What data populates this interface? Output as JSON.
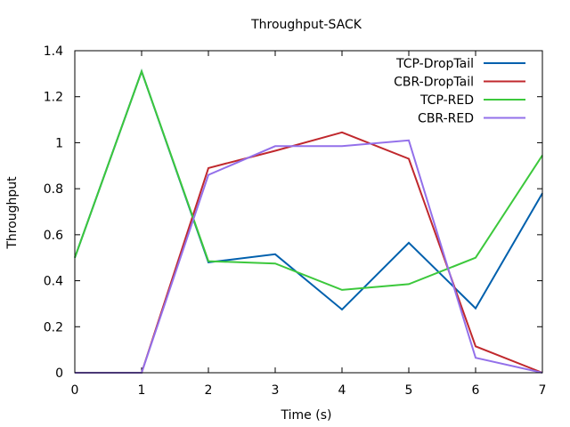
{
  "chart_data": {
    "type": "line",
    "title": "Throughput-SACK",
    "xlabel": "Time (s)",
    "ylabel": "Throughput",
    "xlim": [
      0,
      7
    ],
    "ylim": [
      0,
      1.4
    ],
    "x_ticks": [
      "0",
      "1",
      "2",
      "3",
      "4",
      "5",
      "6",
      "7"
    ],
    "y_ticks": [
      "0",
      "0.2",
      "0.4",
      "0.6",
      "0.8",
      "1",
      "1.2",
      "1.4"
    ],
    "x_tick_values": [
      0,
      1,
      2,
      3,
      4,
      5,
      6,
      7
    ],
    "y_tick_values": [
      0,
      0.2,
      0.4,
      0.6,
      0.8,
      1.0,
      1.2,
      1.4
    ],
    "grid": false,
    "legend_position": "top-right",
    "x": [
      0,
      1,
      2,
      3,
      4,
      5,
      6,
      7
    ],
    "series": [
      {
        "name": "TCP-DropTail",
        "color": "#0060ad",
        "values": [
          0.5,
          1.31,
          0.48,
          0.515,
          0.275,
          0.565,
          0.28,
          0.78
        ]
      },
      {
        "name": "CBR-DropTail",
        "color": "#c0282d",
        "values": [
          0,
          0,
          0.89,
          0.965,
          1.045,
          0.93,
          0.115,
          0
        ]
      },
      {
        "name": "TCP-RED",
        "color": "#3cc83c",
        "values": [
          0.5,
          1.31,
          0.485,
          0.475,
          0.36,
          0.385,
          0.5,
          0.945
        ]
      },
      {
        "name": "CBR-RED",
        "color": "#9370ea",
        "values": [
          0,
          0,
          0.86,
          0.985,
          0.985,
          1.01,
          0.065,
          0
        ]
      }
    ]
  }
}
